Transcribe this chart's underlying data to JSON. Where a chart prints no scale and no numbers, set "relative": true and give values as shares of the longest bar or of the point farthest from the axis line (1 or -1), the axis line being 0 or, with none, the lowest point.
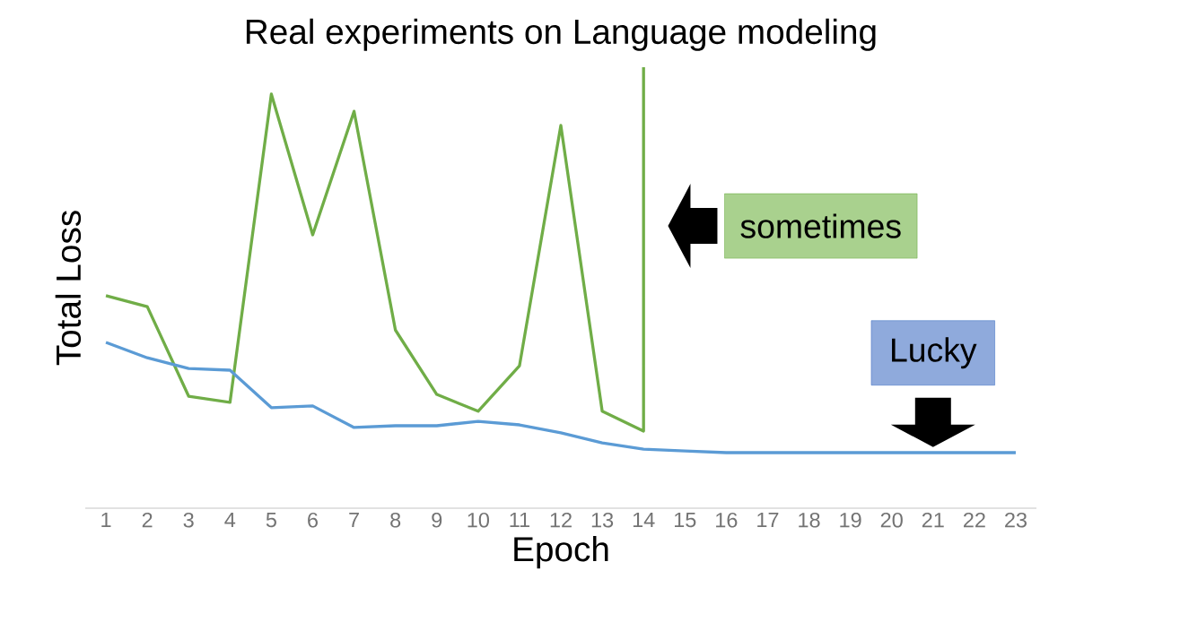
{
  "chart_data": {
    "type": "line",
    "title": "Real experiments on Language modeling",
    "xlabel": "Epoch",
    "ylabel": "Total Loss",
    "relative": true,
    "marker": "none",
    "line_style": "solid",
    "xlim": [
      0.5,
      23.5
    ],
    "xticks": [
      1,
      2,
      3,
      4,
      5,
      6,
      7,
      8,
      9,
      10,
      11,
      12,
      13,
      14,
      15,
      16,
      17,
      18,
      19,
      20,
      21,
      22,
      23
    ],
    "series": [
      {
        "color": "#70ad47",
        "x": [
          1,
          2,
          3,
          4,
          5,
          6,
          7,
          8,
          9,
          10,
          11,
          12,
          13,
          14,
          14
        ],
        "values": [
          0.482,
          0.457,
          0.254,
          0.24,
          0.939,
          0.62,
          0.9,
          0.404,
          0.258,
          0.22,
          0.323,
          0.868,
          0.22,
          0.175,
          1.0
        ]
      },
      {
        "color": "#5b9bd5",
        "x": [
          1,
          2,
          3,
          4,
          5,
          6,
          7,
          8,
          9,
          10,
          11,
          12,
          13,
          14,
          15,
          16,
          17,
          18,
          19,
          20,
          21,
          22,
          23
        ],
        "values": [
          0.376,
          0.341,
          0.317,
          0.313,
          0.228,
          0.232,
          0.183,
          0.187,
          0.187,
          0.197,
          0.189,
          0.171,
          0.148,
          0.134,
          0.13,
          0.126,
          0.126,
          0.126,
          0.126,
          0.126,
          0.126,
          0.126,
          0.126
        ]
      }
    ],
    "annotations": [
      {
        "text": "sometimes",
        "x": 14,
        "y": 0.64
      },
      {
        "text": "Lucky",
        "x": 21,
        "y": 0.126
      }
    ]
  }
}
